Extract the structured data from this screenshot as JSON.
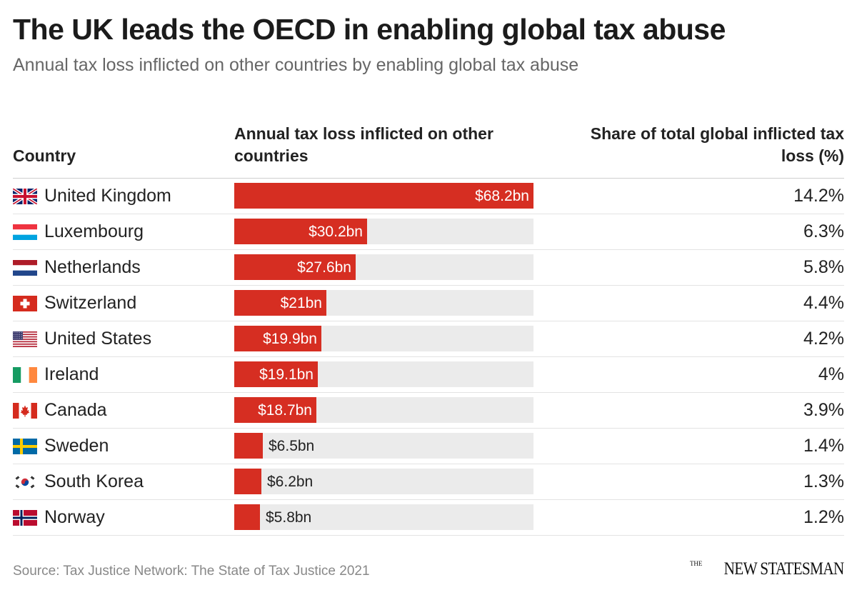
{
  "header": {
    "title": "The UK leads the OECD in enabling global tax abuse",
    "subtitle": "Annual tax loss inflicted on other countries by enabling global tax abuse"
  },
  "columns": {
    "country": "Country",
    "loss": "Annual tax loss inflicted on other countries",
    "share": "Share of total global inflicted tax loss (%)"
  },
  "colors": {
    "bar": "#d62e22",
    "track": "#ebebeb"
  },
  "chart_data": {
    "type": "bar",
    "orientation": "horizontal",
    "title": "The UK leads the OECD in enabling global tax abuse",
    "subtitle": "Annual tax loss inflicted on other countries by enabling global tax abuse",
    "xlabel": "Annual tax loss inflicted on other countries",
    "unit": "bn USD",
    "xlim": [
      0,
      68.2
    ],
    "categories": [
      "United Kingdom",
      "Luxembourg",
      "Netherlands",
      "Switzerland",
      "United States",
      "Ireland",
      "Canada",
      "Sweden",
      "South Korea",
      "Norway"
    ],
    "values": [
      68.2,
      30.2,
      27.6,
      21,
      19.9,
      19.1,
      18.7,
      6.5,
      6.2,
      5.8
    ],
    "rows": [
      {
        "country": "United Kingdom",
        "flag": "uk-flag-icon",
        "value": 68.2,
        "label": "$68.2bn",
        "share": "14.2%"
      },
      {
        "country": "Luxembourg",
        "flag": "luxembourg-flag-icon",
        "value": 30.2,
        "label": "$30.2bn",
        "share": "6.3%"
      },
      {
        "country": "Netherlands",
        "flag": "netherlands-flag-icon",
        "value": 27.6,
        "label": "$27.6bn",
        "share": "5.8%"
      },
      {
        "country": "Switzerland",
        "flag": "switzerland-flag-icon",
        "value": 21,
        "label": "$21bn",
        "share": "4.4%"
      },
      {
        "country": "United States",
        "flag": "us-flag-icon",
        "value": 19.9,
        "label": "$19.9bn",
        "share": "4.2%"
      },
      {
        "country": "Ireland",
        "flag": "ireland-flag-icon",
        "value": 19.1,
        "label": "$19.1bn",
        "share": "4%"
      },
      {
        "country": "Canada",
        "flag": "canada-flag-icon",
        "value": 18.7,
        "label": "$18.7bn",
        "share": "3.9%"
      },
      {
        "country": "Sweden",
        "flag": "sweden-flag-icon",
        "value": 6.5,
        "label": "$6.5bn",
        "share": "1.4%"
      },
      {
        "country": "South Korea",
        "flag": "south-korea-flag-icon",
        "value": 6.2,
        "label": "$6.2bn",
        "share": "1.3%"
      },
      {
        "country": "Norway",
        "flag": "norway-flag-icon",
        "value": 5.8,
        "label": "$5.8bn",
        "share": "1.2%"
      }
    ]
  },
  "footer": {
    "source": "Source: Tax Justice Network: The State of Tax Justice 2021",
    "logo_the": "THE",
    "logo_main": "NEW STATESMAN"
  }
}
